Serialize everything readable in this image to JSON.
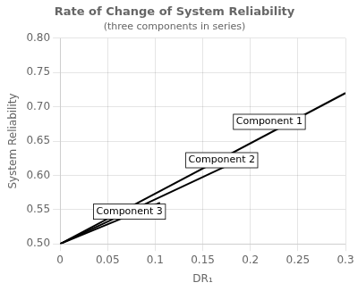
{
  "chart_data": {
    "type": "line",
    "title": "Rate of Change of System Reliability",
    "subtitle": "(three components in series)",
    "x_label": "DR₁",
    "y_label": "System Reliability",
    "xlim": [
      0,
      0.3
    ],
    "ylim": [
      0.5,
      0.8
    ],
    "xticks": [
      0,
      0.05,
      0.1,
      0.15,
      0.2,
      0.25,
      0.3
    ],
    "yticks": [
      {
        "value": 0.5,
        "label": "0.50"
      },
      0.55,
      {
        "value": 0.6,
        "label": "0.60"
      },
      0.65,
      {
        "value": 0.7,
        "label": "0.70"
      },
      0.75,
      {
        "value": 0.8,
        "label": "0.80"
      }
    ],
    "grid": true,
    "series": [
      {
        "color": "#000000",
        "x": [
          0,
          0.3
        ],
        "values": [
          0.5,
          0.71999
        ]
      },
      {
        "color": "#000000",
        "x": [
          0,
          0.2
        ],
        "values": [
          0.5,
          0.63
        ]
      },
      {
        "color": "#000000",
        "x": [
          0,
          0.105
        ],
        "values": [
          0.5,
          0.559997
        ]
      }
    ],
    "annotations": [
      {
        "text": "Component 1",
        "x": 0.185,
        "y": 0.678
      },
      {
        "text": "Component 2",
        "x": 0.135,
        "y": 0.622
      },
      {
        "text": "Component 3",
        "x": 0.038,
        "y": 0.547
      }
    ]
  }
}
